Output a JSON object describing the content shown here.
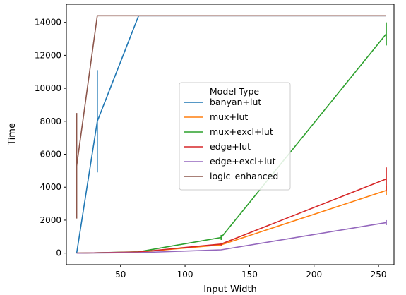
{
  "chart_data": {
    "type": "line",
    "xlabel": "Input Width",
    "ylabel": "Time",
    "xlim": [
      8,
      262
    ],
    "ylim": [
      -700,
      15100
    ],
    "xticks": [
      50,
      100,
      150,
      200,
      250
    ],
    "yticks": [
      0,
      2000,
      4000,
      6000,
      8000,
      10000,
      12000,
      14000
    ],
    "grid": false,
    "legend": {
      "title": "Model Type",
      "placement": "center-right"
    },
    "x": [
      16,
      32,
      64,
      128,
      256
    ],
    "series": [
      {
        "name": "banyan+lut",
        "color": "#1f77b4",
        "values": [
          0,
          8000,
          14400,
          14400,
          14400
        ],
        "error": [
          0,
          3100,
          0,
          0,
          0
        ]
      },
      {
        "name": "mux+lut",
        "color": "#ff7f0e",
        "values": [
          0,
          20,
          60,
          500,
          3800
        ],
        "error": [
          0,
          0,
          0,
          50,
          300
        ]
      },
      {
        "name": "mux+excl+lut",
        "color": "#2ca02c",
        "values": [
          0,
          20,
          80,
          950,
          13300
        ],
        "error": [
          0,
          0,
          0,
          150,
          700
        ]
      },
      {
        "name": "edge+lut",
        "color": "#d62728",
        "values": [
          0,
          20,
          70,
          550,
          4500
        ],
        "error": [
          0,
          0,
          0,
          80,
          700
        ]
      },
      {
        "name": "edge+excl+lut",
        "color": "#9467bd",
        "values": [
          0,
          10,
          30,
          200,
          1850
        ],
        "error": [
          0,
          0,
          0,
          20,
          150
        ]
      },
      {
        "name": "logic_enhanced",
        "color": "#8c564b",
        "values": [
          5300,
          14400,
          14400,
          14400,
          14400
        ],
        "error": [
          3200,
          0,
          0,
          0,
          0
        ]
      }
    ]
  }
}
